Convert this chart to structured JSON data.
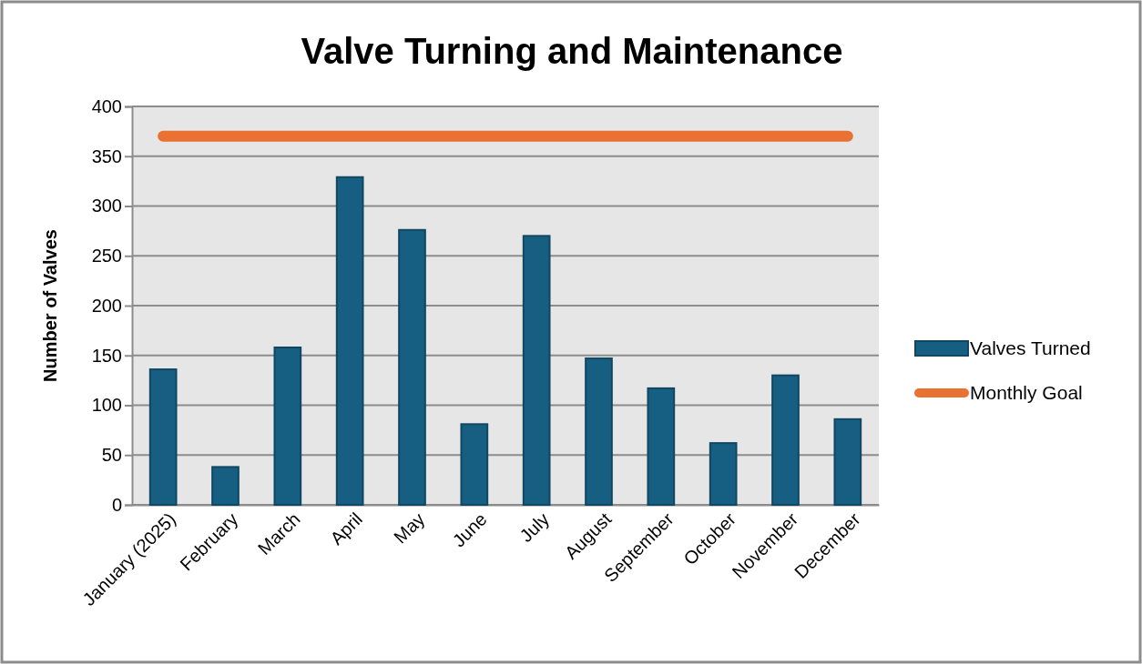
{
  "chart_data": {
    "type": "bar",
    "title": "Valve Turning and Maintenance",
    "ylabel": "Number of Valves",
    "categories": [
      "January (2025)",
      "February",
      "March",
      "April",
      "May",
      "June",
      "July",
      "August",
      "September",
      "October",
      "November",
      "December"
    ],
    "series": [
      {
        "name": "Valves Turned",
        "color": "#175f82",
        "values": [
          136,
          38,
          158,
          329,
          276,
          81,
          270,
          147,
          117,
          62,
          130,
          86
        ]
      },
      {
        "name": "Monthly Goal",
        "type": "line",
        "color": "#e97132",
        "values": [
          370,
          370,
          370,
          370,
          370,
          370,
          370,
          370,
          370,
          370,
          370,
          370
        ]
      }
    ],
    "ylim": [
      0,
      400
    ],
    "yticks": [
      0,
      50,
      100,
      150,
      200,
      250,
      300,
      350,
      400
    ],
    "grid": "y",
    "legend": "right"
  }
}
